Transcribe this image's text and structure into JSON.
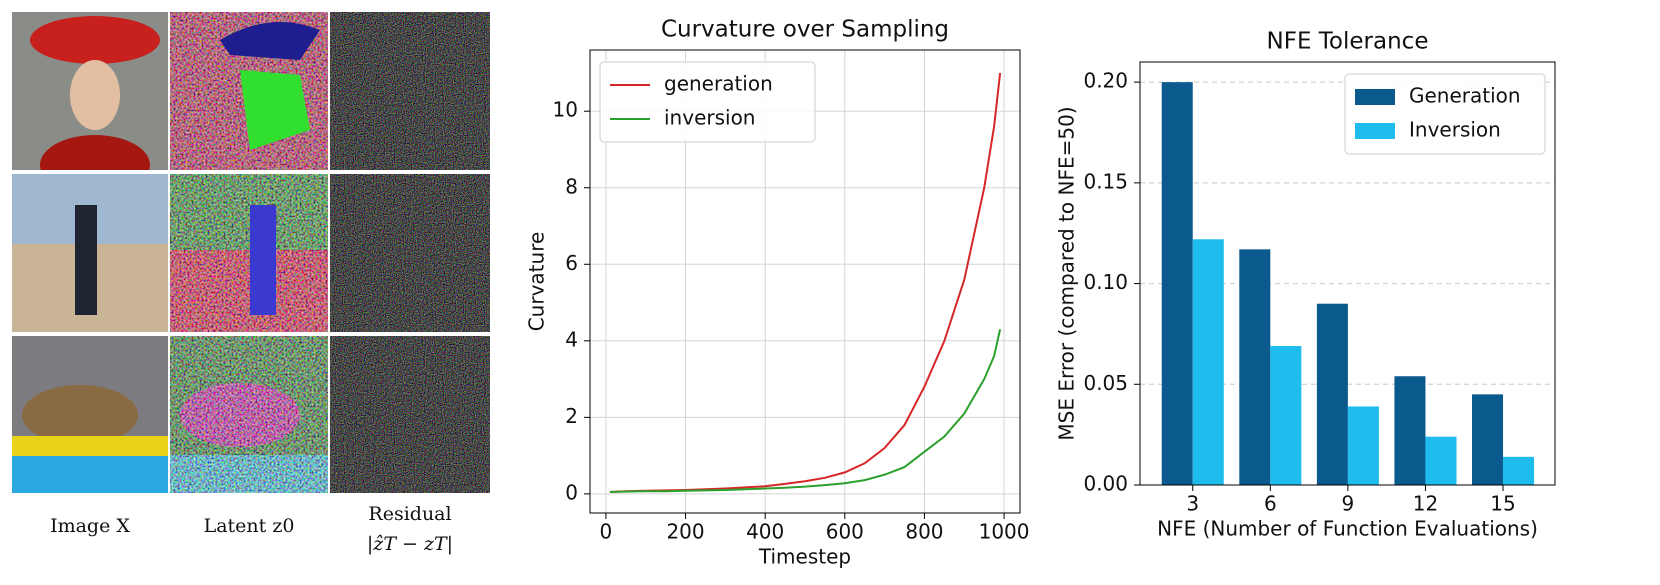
{
  "panel_labels": {
    "image": "Image X",
    "latent": "Latent z0",
    "residual": "Residual",
    "residual_formula": "|ẑT − zT|"
  },
  "chart_data": [
    {
      "type": "line",
      "title": "Curvature over Sampling",
      "xlabel": "Timestep",
      "ylabel": "Curvature",
      "x": [
        10,
        50,
        100,
        150,
        200,
        250,
        300,
        350,
        400,
        450,
        500,
        550,
        600,
        650,
        700,
        750,
        800,
        850,
        900,
        950,
        975,
        990
      ],
      "series": [
        {
          "name": "generation",
          "color": "#d62728",
          "values": [
            0.05,
            0.07,
            0.08,
            0.09,
            0.1,
            0.12,
            0.14,
            0.17,
            0.2,
            0.26,
            0.33,
            0.42,
            0.56,
            0.8,
            1.2,
            1.8,
            2.8,
            4.0,
            5.6,
            8.0,
            9.6,
            11.0
          ]
        },
        {
          "name": "inversion",
          "color": "#2ca02c",
          "values": [
            0.05,
            0.06,
            0.07,
            0.07,
            0.08,
            0.09,
            0.1,
            0.12,
            0.14,
            0.16,
            0.19,
            0.23,
            0.28,
            0.36,
            0.5,
            0.7,
            1.1,
            1.5,
            2.1,
            3.0,
            3.6,
            4.3
          ]
        }
      ],
      "xlim": [
        -40,
        1040
      ],
      "xticks": [
        0,
        200,
        400,
        600,
        800,
        1000
      ],
      "ylim": [
        -0.5,
        11.6
      ],
      "yticks": [
        0,
        2,
        4,
        6,
        8,
        10
      ],
      "grid": true,
      "legend": "upper left"
    },
    {
      "type": "bar",
      "title": "NFE Tolerance",
      "xlabel": "NFE (Number of Function Evaluations)",
      "ylabel": "MSE Error (compared to NFE=50)",
      "categories": [
        "3",
        "6",
        "9",
        "12",
        "15"
      ],
      "series": [
        {
          "name": "Generation",
          "color": "#0b5a8e",
          "values": [
            0.2,
            0.117,
            0.09,
            0.054,
            0.045
          ]
        },
        {
          "name": "Inversion",
          "color": "#1fbdee",
          "values": [
            0.122,
            0.069,
            0.039,
            0.024,
            0.014
          ]
        }
      ],
      "ylim": [
        0,
        0.21
      ],
      "yticks": [
        {
          "value": 0,
          "label": "0.00"
        },
        {
          "value": 0.05,
          "label": "0.05"
        },
        {
          "value": 0.1,
          "label": "0.10"
        },
        {
          "value": 0.15,
          "label": "0.15"
        },
        {
          "value": 0.2,
          "label": "0.20"
        }
      ],
      "grid": true,
      "legend": "upper right"
    }
  ]
}
